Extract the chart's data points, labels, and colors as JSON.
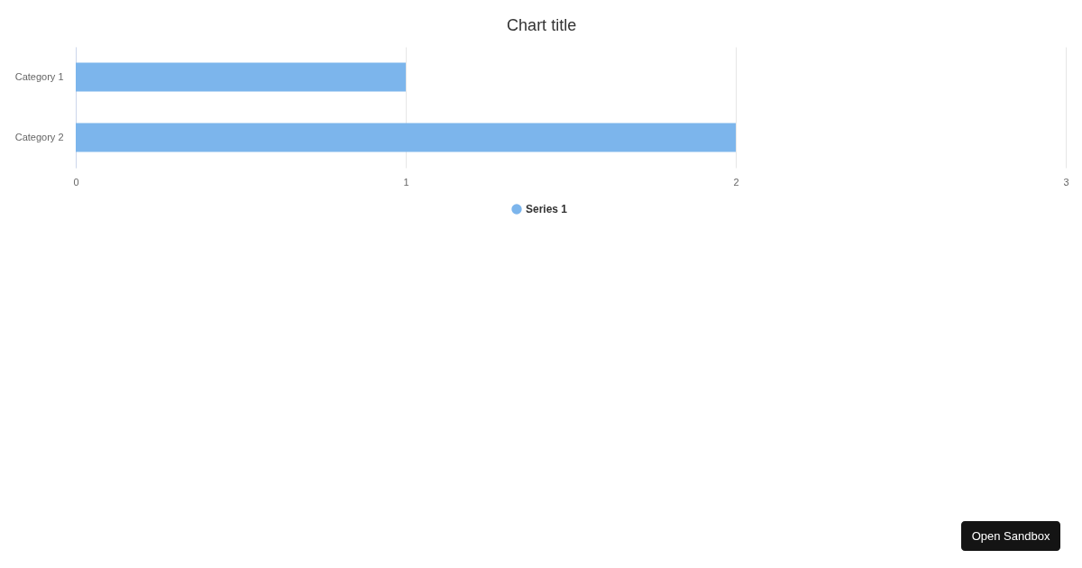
{
  "chart_data": {
    "type": "bar",
    "orientation": "horizontal",
    "title": "Chart title",
    "categories": [
      "Category 1",
      "Category 2"
    ],
    "series": [
      {
        "name": "Series 1",
        "color": "#7cb5ec",
        "values": [
          1,
          2
        ]
      }
    ],
    "xlim": [
      0,
      3
    ],
    "xticks": [
      0,
      1,
      2,
      3
    ],
    "grid": "x",
    "legend": "bottom",
    "annotations": [
      "Open Sandbox"
    ]
  }
}
